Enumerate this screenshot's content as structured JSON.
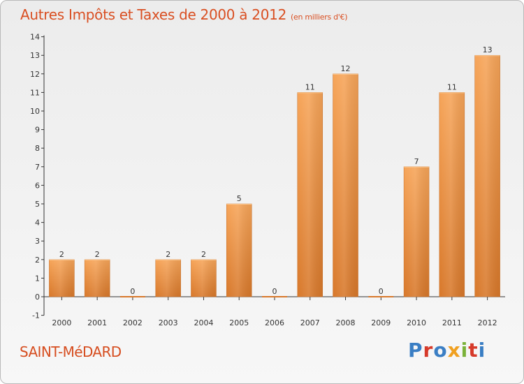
{
  "header": {
    "title": "Autres Impôts et Taxes de 2000 à 2012",
    "unit": "(en milliers d'€)"
  },
  "footer": {
    "place": "SAINT-MéDARD",
    "logo": "Proxiti"
  },
  "colors": {
    "title": "#d94f22",
    "bar_top": "#f6a458",
    "bar_bottom": "#d8782a",
    "axis": "#333333",
    "logo_letters": [
      "#3a7ec4",
      "#d63a2a",
      "#3a7ec4",
      "#f0a020",
      "#7bb23a",
      "#d63a2a",
      "#3a7ec4"
    ]
  },
  "chart_data": {
    "type": "bar",
    "categories": [
      "2000",
      "2001",
      "2002",
      "2003",
      "2004",
      "2005",
      "2006",
      "2007",
      "2008",
      "2009",
      "2010",
      "2011",
      "2012"
    ],
    "values": [
      2,
      2,
      0,
      2,
      2,
      5,
      0,
      11,
      12,
      0,
      7,
      11,
      13
    ],
    "data_labels": [
      "2",
      "2",
      "0",
      "2",
      "2",
      "5",
      "0",
      "11",
      "12",
      "0",
      "7",
      "11",
      "13"
    ],
    "y_ticks": [
      -1,
      0,
      1,
      2,
      3,
      4,
      5,
      6,
      7,
      8,
      9,
      10,
      11,
      12,
      13,
      14
    ],
    "ylim": [
      -1,
      14
    ],
    "grid": false,
    "legend": "none"
  }
}
